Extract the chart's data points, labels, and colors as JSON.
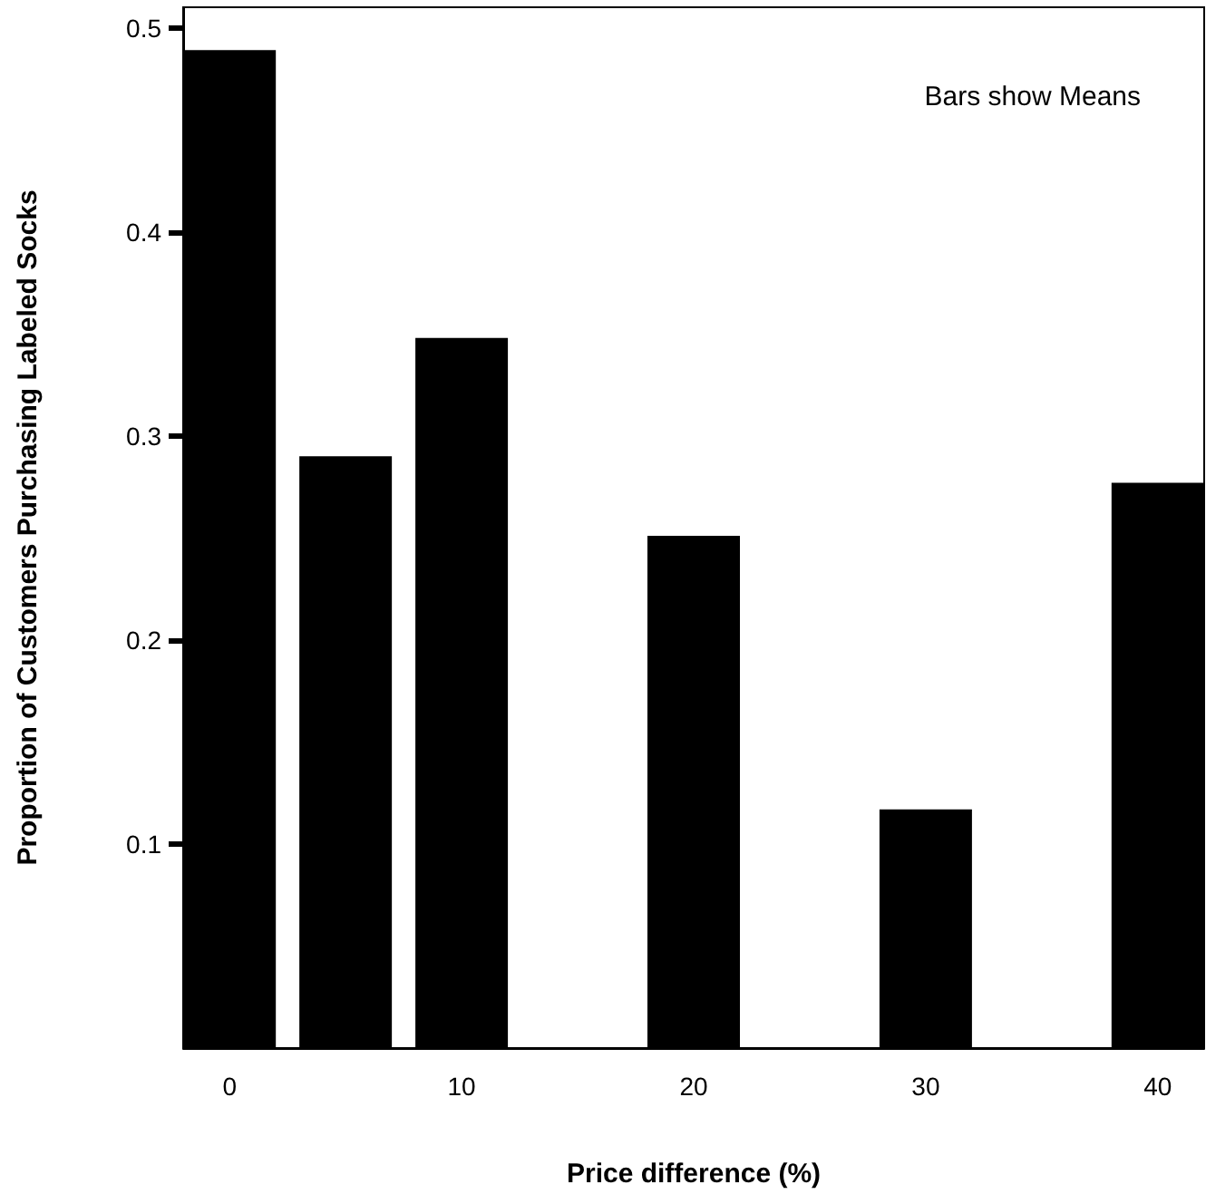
{
  "chart_data": {
    "type": "bar",
    "xlabel": "Price difference (%)",
    "ylabel": "Proportion of Customers Purchasing Labeled Socks",
    "annotations": [
      "Bars show Means"
    ],
    "x": [
      0,
      5,
      10,
      20,
      30,
      40
    ],
    "values": [
      0.489,
      0.29,
      0.348,
      0.251,
      0.117,
      0.277
    ],
    "color": "#000000",
    "xlim": [
      -2,
      42
    ],
    "xticks": [
      0,
      10,
      20,
      30,
      40
    ],
    "ylim": [
      0,
      0.51
    ],
    "yticks": [
      0.1,
      0.2,
      0.3,
      0.4,
      0.5
    ],
    "grid": false
  }
}
